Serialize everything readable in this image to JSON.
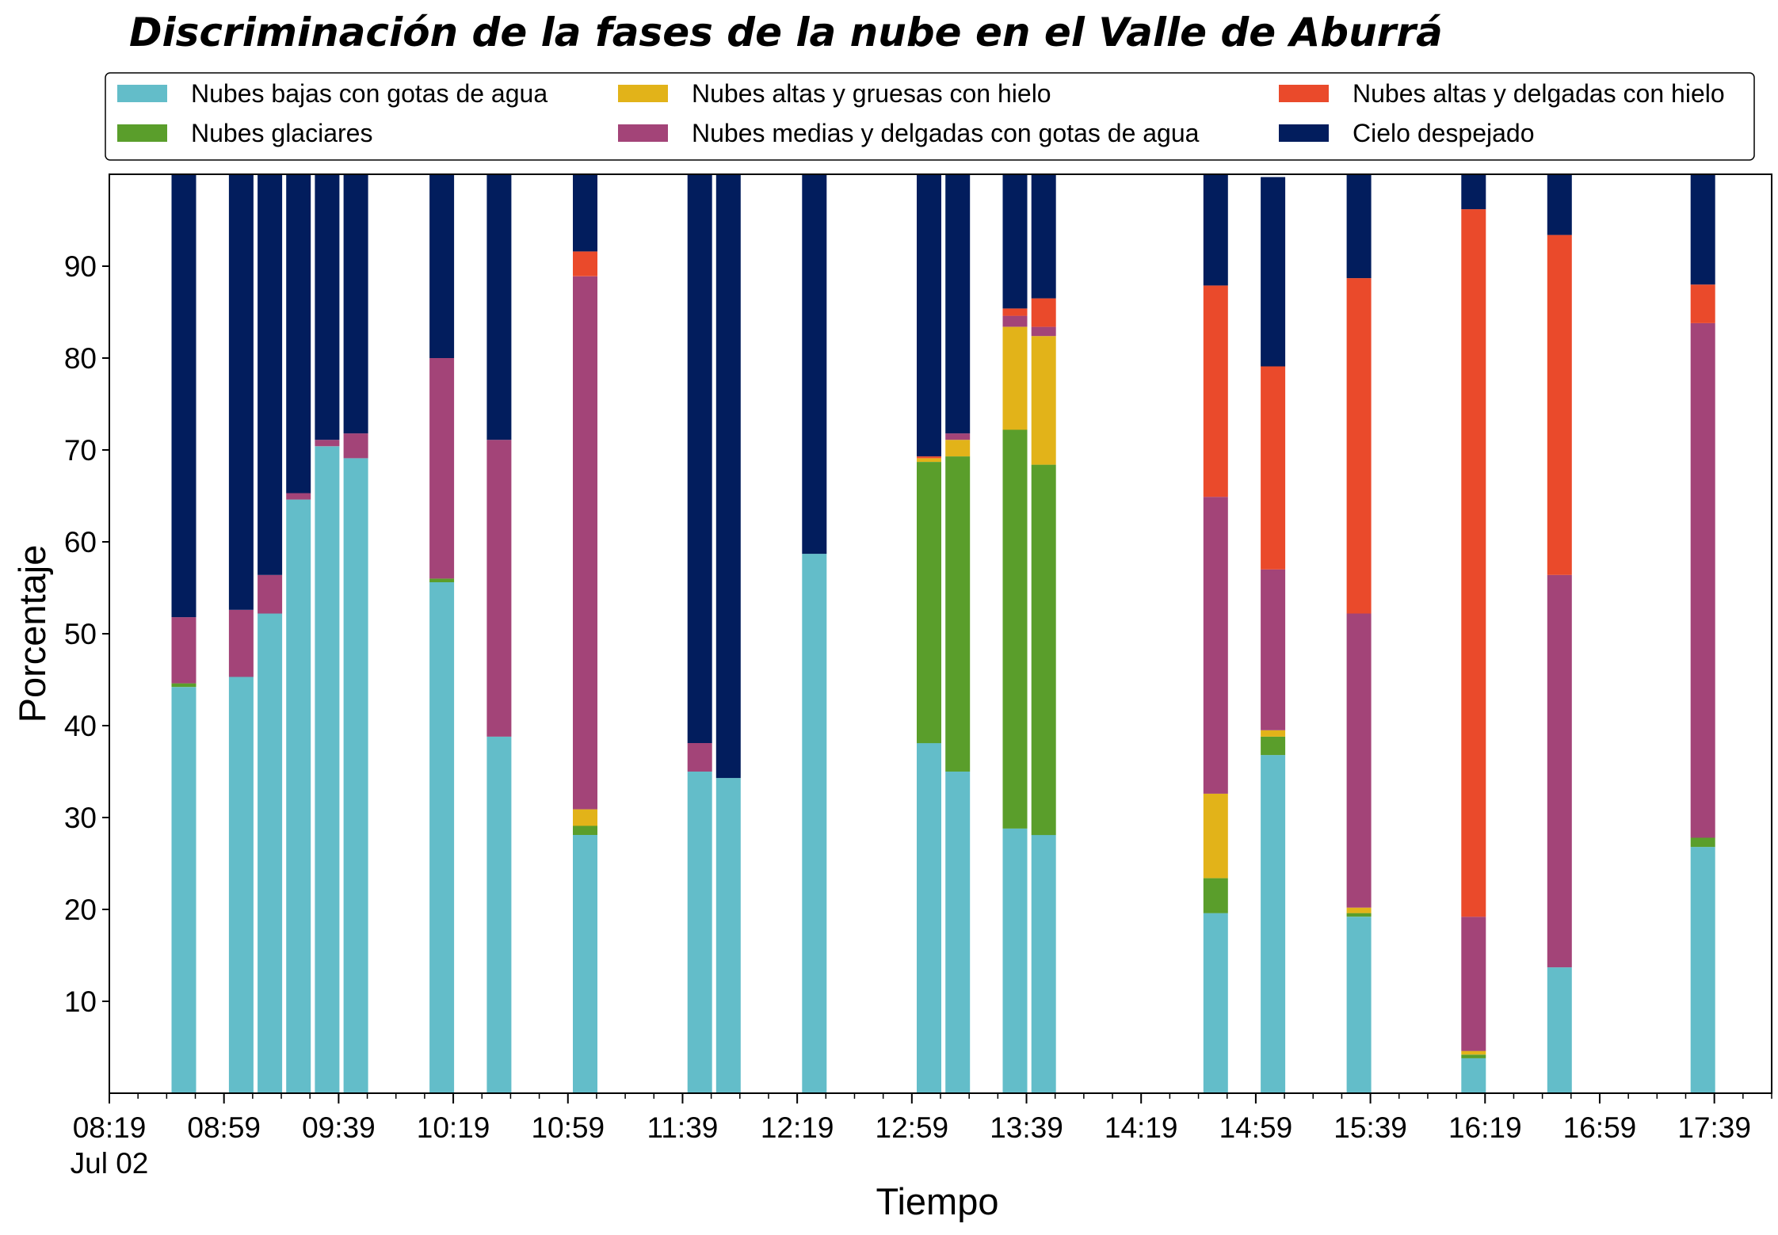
{
  "chart_data": {
    "type": "bar",
    "stacked": true,
    "title": "Discriminación de la fases de la nube en el Valle de Aburrá",
    "xlabel": "Tiempo",
    "ylabel": "Porcentaje",
    "ylim": [
      0,
      100
    ],
    "yticks": [
      10,
      20,
      30,
      40,
      50,
      60,
      70,
      80,
      90
    ],
    "xlim_minutes": [
      0,
      580
    ],
    "xticks": [
      {
        "minute": 0,
        "label": "08:19",
        "sublabel": "Jul 02"
      },
      {
        "minute": 40,
        "label": "08:59",
        "sublabel": ""
      },
      {
        "minute": 80,
        "label": "09:39",
        "sublabel": ""
      },
      {
        "minute": 120,
        "label": "10:19",
        "sublabel": ""
      },
      {
        "minute": 160,
        "label": "10:59",
        "sublabel": ""
      },
      {
        "minute": 200,
        "label": "11:39",
        "sublabel": ""
      },
      {
        "minute": 240,
        "label": "12:19",
        "sublabel": ""
      },
      {
        "minute": 280,
        "label": "12:59",
        "sublabel": ""
      },
      {
        "minute": 320,
        "label": "13:39",
        "sublabel": ""
      },
      {
        "minute": 360,
        "label": "14:19",
        "sublabel": ""
      },
      {
        "minute": 400,
        "label": "14:59",
        "sublabel": ""
      },
      {
        "minute": 440,
        "label": "15:39",
        "sublabel": ""
      },
      {
        "minute": 480,
        "label": "16:19",
        "sublabel": ""
      },
      {
        "minute": 520,
        "label": "16:59",
        "sublabel": ""
      },
      {
        "minute": 560,
        "label": "17:39",
        "sublabel": ""
      }
    ],
    "legend_position": "top",
    "grid": false,
    "x": [
      "08:45",
      "09:05",
      "09:15",
      "09:25",
      "09:35",
      "09:45",
      "10:15",
      "10:35",
      "11:05",
      "11:45",
      "11:55",
      "12:25",
      "13:05",
      "13:15",
      "13:35",
      "13:45",
      "14:45",
      "15:05",
      "15:35",
      "16:15",
      "16:45",
      "17:35"
    ],
    "series": [
      {
        "name": "Nubes bajas con gotas de agua",
        "color": "#63bdc9",
        "values": [
          44.2,
          45.3,
          52.2,
          64.6,
          70.4,
          69.1,
          55.6,
          38.8,
          28.1,
          35.0,
          34.3,
          58.7,
          38.1,
          35.0,
          28.8,
          28.1,
          19.6,
          36.8,
          19.2,
          3.8,
          13.7,
          26.8
        ]
      },
      {
        "name": "Nubes glaciares",
        "color": "#5a9e2b",
        "values": [
          0.4,
          0,
          0,
          0,
          0,
          0,
          0.4,
          0,
          1.0,
          0,
          0,
          0,
          30.6,
          34.3,
          43.4,
          40.3,
          3.8,
          2.0,
          0.4,
          0.4,
          0,
          1.0
        ]
      },
      {
        "name": "Nubes altas y gruesas con hielo",
        "color": "#e2b319",
        "values": [
          0,
          0,
          0,
          0,
          0,
          0,
          0,
          0,
          1.8,
          0,
          0,
          0,
          0.4,
          1.8,
          11.2,
          14.0,
          9.2,
          0.7,
          0.6,
          0.4,
          0,
          0
        ]
      },
      {
        "name": "Nubes medias y delgadas con gotas de agua",
        "color": "#a34478",
        "values": [
          7.2,
          7.3,
          4.2,
          0.7,
          0.7,
          2.7,
          24.0,
          32.3,
          58.0,
          3.1,
          0,
          0,
          0,
          0.7,
          1.2,
          1.0,
          32.3,
          17.5,
          32.0,
          14.6,
          42.7,
          56.0
        ]
      },
      {
        "name": "Nubes altas y delgadas con hielo",
        "color": "#ea4a2b",
        "values": [
          0,
          0,
          0,
          0,
          0,
          0,
          0,
          0,
          2.7,
          0,
          0,
          0,
          0.2,
          0,
          0.8,
          3.1,
          23.0,
          22.1,
          36.5,
          77.0,
          37.0,
          4.2
        ]
      },
      {
        "name": "Cielo despejado",
        "color": "#021d5d",
        "values": [
          48.2,
          47.4,
          43.6,
          34.7,
          28.9,
          28.2,
          20.0,
          28.9,
          8.4,
          61.9,
          65.7,
          41.3,
          30.7,
          28.2,
          14.6,
          13.5,
          12.1,
          20.6,
          11.3,
          3.8,
          6.6,
          12.0
        ]
      }
    ]
  }
}
